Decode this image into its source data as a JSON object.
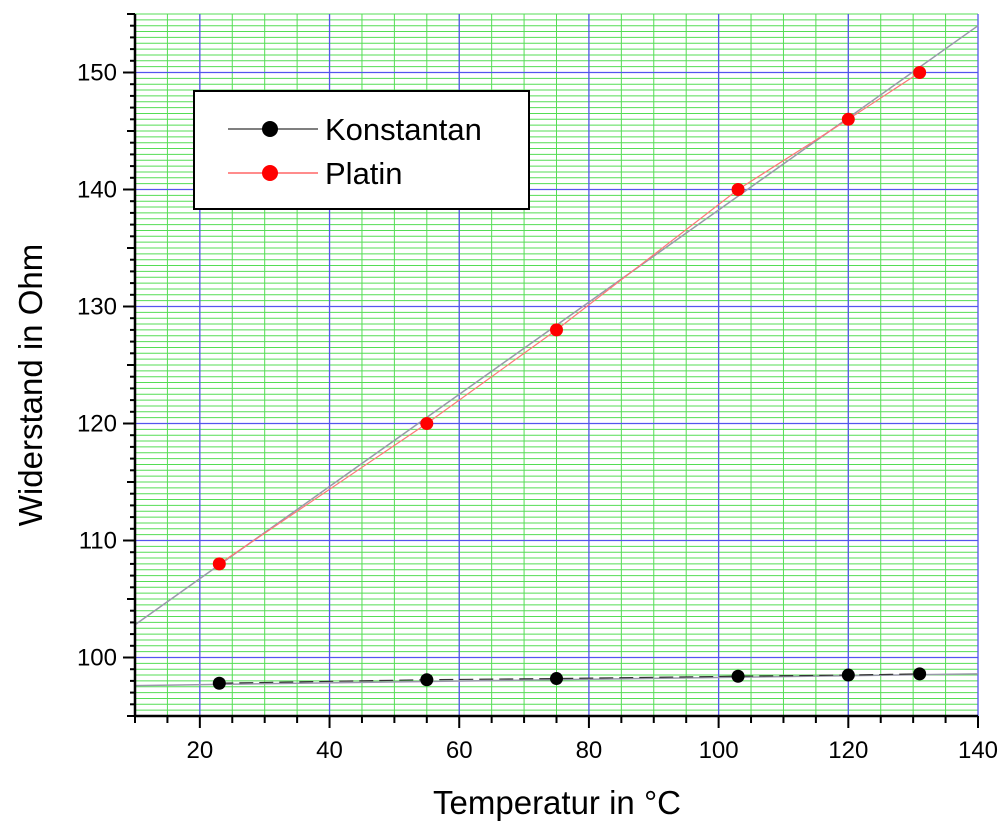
{
  "chart_data": {
    "type": "line",
    "xlabel": "Temperatur in °C",
    "ylabel": "Widerstand in Ohm",
    "xlim": [
      10,
      140
    ],
    "ylim": [
      95,
      155
    ],
    "x_ticks": [
      20,
      40,
      60,
      80,
      100,
      120,
      140
    ],
    "y_ticks": [
      100,
      110,
      120,
      130,
      140,
      150
    ],
    "grid": true,
    "legend_position": "top-left",
    "series": [
      {
        "name": "Konstantan",
        "color": "#000000",
        "x": [
          23,
          55,
          75,
          103,
          120,
          131
        ],
        "y": [
          97.8,
          98.1,
          98.2,
          98.4,
          98.5,
          98.6
        ],
        "fit": {
          "from": [
            10,
            97.6
          ],
          "to": [
            140,
            98.6
          ]
        }
      },
      {
        "name": "Platin",
        "color": "#ff0000",
        "x": [
          23,
          55,
          75,
          103,
          120,
          131
        ],
        "y": [
          108,
          120,
          128,
          140,
          146,
          150
        ],
        "fit": {
          "from": [
            10,
            102.8
          ],
          "to": [
            140,
            154
          ]
        }
      }
    ],
    "colors": {
      "major_grid": "#5555ee",
      "minor_grid": "#55dd55",
      "fit_line": "#9999aa"
    }
  }
}
